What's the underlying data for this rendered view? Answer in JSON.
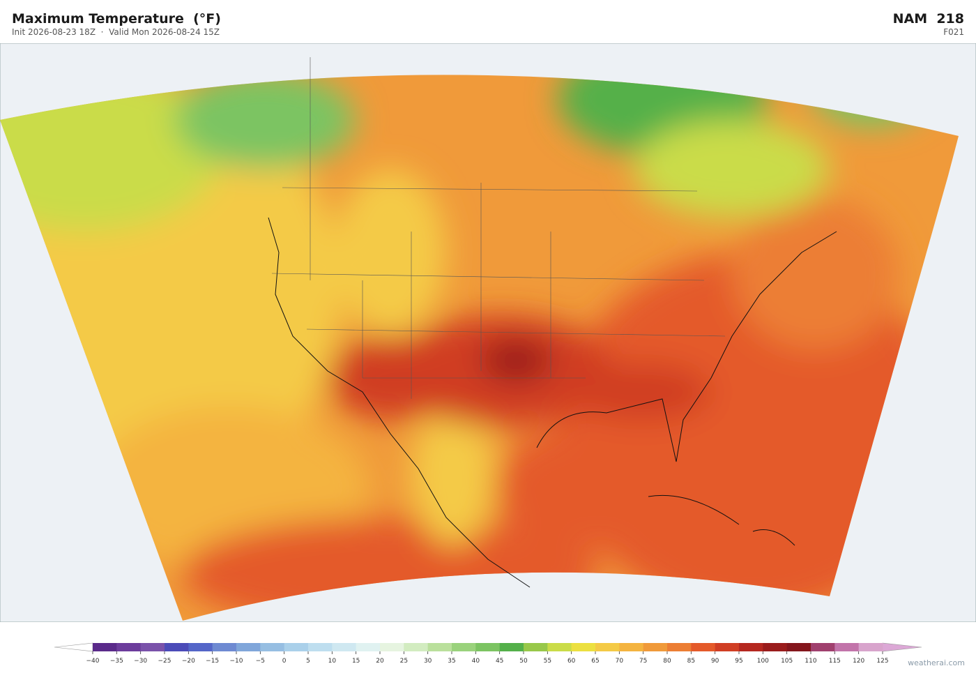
{
  "header": {
    "title": "Maximum Temperature  (°F)",
    "subtitle": "Init 2026-08-23 18Z  ·  Valid Mon 2026-08-24 15Z",
    "model": "NAM  218",
    "forecast_hour": "F021"
  },
  "colorbar": {
    "ticks": [
      "−40",
      "−35",
      "−30",
      "−25",
      "−20",
      "−15",
      "−10",
      "−5",
      "0",
      "5",
      "10",
      "15",
      "20",
      "25",
      "30",
      "35",
      "40",
      "45",
      "50",
      "55",
      "60",
      "65",
      "70",
      "75",
      "80",
      "85",
      "90",
      "95",
      "100",
      "105",
      "110",
      "115",
      "120",
      "125"
    ],
    "colors": [
      "#5a2a8a",
      "#6c3c9c",
      "#7a52aa",
      "#4b4bb8",
      "#5466c8",
      "#6e8ad2",
      "#80a6da",
      "#96bee2",
      "#aad0ea",
      "#bedeef",
      "#cfe8f1",
      "#e0f2f1",
      "#e6f4e0",
      "#d2ecc0",
      "#bae09c",
      "#9ad27c",
      "#7cc462",
      "#54b04a",
      "#98c84a",
      "#cadc48",
      "#ece040",
      "#f4ca46",
      "#f4b440",
      "#f09a3a",
      "#ec7e34",
      "#e45a2a",
      "#d03e24",
      "#b52820",
      "#9a1c1c",
      "#84161c",
      "#a0406e",
      "#c274aa",
      "#d8a4cc"
    ],
    "under_color": "#ffffff",
    "over_color": "#dca8d6"
  },
  "watermark": "weatherai.com"
}
